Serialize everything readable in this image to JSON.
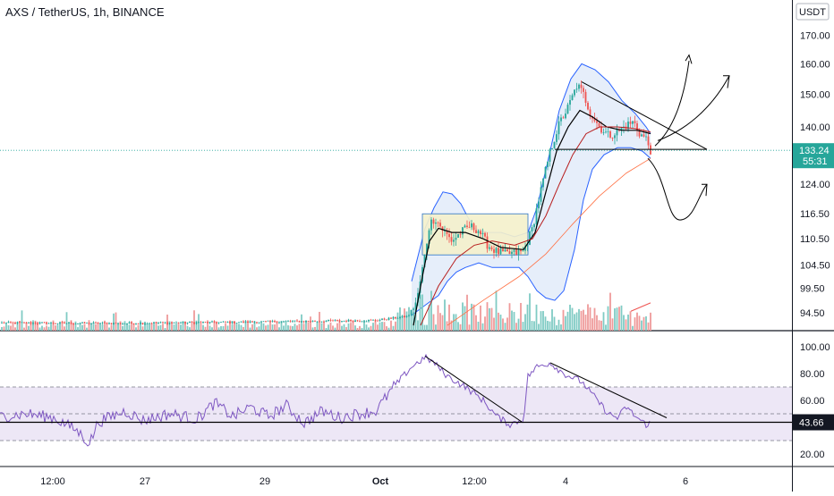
{
  "header": {
    "symbol_title": "AXS / TetherUS, 1h, BINANCE"
  },
  "chart_data": [
    {
      "type": "candlestick",
      "title": "AXS / TetherUS, 1h, BINANCE",
      "currency": "USDT",
      "y_axis_scale": "log",
      "y_ticks": [
        "170.00",
        "160.00",
        "150.00",
        "140.00",
        "133.24",
        "124.00",
        "116.50",
        "110.50",
        "104.50",
        "99.50",
        "94.50"
      ],
      "ylim": [
        91.5,
        178
      ],
      "x_ticks": [
        "12:00",
        "27",
        "29",
        "Oct",
        "12:00",
        "4",
        "6"
      ],
      "last_price": "133.24",
      "countdown": "55:31",
      "price_path_anchors": [
        [
          0,
          92.5
        ],
        [
          130,
          92.4
        ],
        [
          300,
          92.7
        ],
        [
          420,
          93.0
        ],
        [
          456,
          93.8
        ],
        [
          466,
          97
        ],
        [
          475,
          107
        ],
        [
          480,
          114
        ],
        [
          486,
          115.5
        ],
        [
          495,
          112.5
        ],
        [
          505,
          110
        ],
        [
          515,
          112
        ],
        [
          525,
          113.5
        ],
        [
          535,
          112.5
        ],
        [
          545,
          109
        ],
        [
          555,
          107.5
        ],
        [
          565,
          107
        ],
        [
          575,
          107.2
        ],
        [
          585,
          107.5
        ],
        [
          595,
          113
        ],
        [
          605,
          123
        ],
        [
          615,
          133
        ],
        [
          625,
          141
        ],
        [
          635,
          146
        ],
        [
          645,
          153
        ],
        [
          652,
          150
        ],
        [
          660,
          144
        ],
        [
          670,
          140
        ],
        [
          680,
          137.5
        ],
        [
          690,
          138.5
        ],
        [
          700,
          140.5
        ],
        [
          708,
          141.5
        ],
        [
          715,
          138
        ],
        [
          722,
          136.5
        ],
        [
          727,
          133.24
        ]
      ],
      "volume_level": "low until Oct, high after",
      "overlays": [
        "bollinger-bands",
        "moving-averages",
        "trendlines",
        "rectangle",
        "projection-arrows"
      ],
      "colors": {
        "up": "#26a69a",
        "down": "#ef5350",
        "bb": "#2962ff",
        "bb_fill": "#e3ecfa",
        "ma_black": "#000000",
        "ma_red": "#b71c1c",
        "ma_orange": "#ff7043",
        "rect": "#f5f1cc",
        "price_label": "#26a69a",
        "rsi": "#7e57c2",
        "rsi_band": "#ede7f6"
      }
    },
    {
      "type": "line",
      "indicator": "RSI",
      "y_ticks": [
        "100.00",
        "80.00",
        "60.00",
        "43.66",
        "20.00"
      ],
      "ylim": [
        12,
        104
      ],
      "upper_band": 70,
      "lower_band": 30,
      "mid_line": 50,
      "last_value": "43.66",
      "rsi_anchors": [
        [
          0,
          48
        ],
        [
          30,
          50
        ],
        [
          60,
          47
        ],
        [
          85,
          38
        ],
        [
          100,
          28
        ],
        [
          110,
          44
        ],
        [
          140,
          52
        ],
        [
          160,
          45
        ],
        [
          190,
          50
        ],
        [
          220,
          46
        ],
        [
          240,
          58
        ],
        [
          260,
          48
        ],
        [
          280,
          55
        ],
        [
          300,
          48
        ],
        [
          320,
          56
        ],
        [
          340,
          43
        ],
        [
          360,
          52
        ],
        [
          380,
          47
        ],
        [
          400,
          50
        ],
        [
          420,
          52
        ],
        [
          440,
          70
        ],
        [
          460,
          85
        ],
        [
          475,
          92
        ],
        [
          485,
          88
        ],
        [
          500,
          78
        ],
        [
          520,
          70
        ],
        [
          540,
          60
        ],
        [
          555,
          48
        ],
        [
          570,
          42
        ],
        [
          585,
          46
        ],
        [
          590,
          78
        ],
        [
          600,
          85
        ],
        [
          615,
          88
        ],
        [
          630,
          80
        ],
        [
          650,
          74
        ],
        [
          665,
          62
        ],
        [
          680,
          50
        ],
        [
          690,
          47
        ],
        [
          700,
          55
        ],
        [
          710,
          48
        ],
        [
          722,
          42
        ],
        [
          727,
          43.66
        ]
      ]
    }
  ]
}
